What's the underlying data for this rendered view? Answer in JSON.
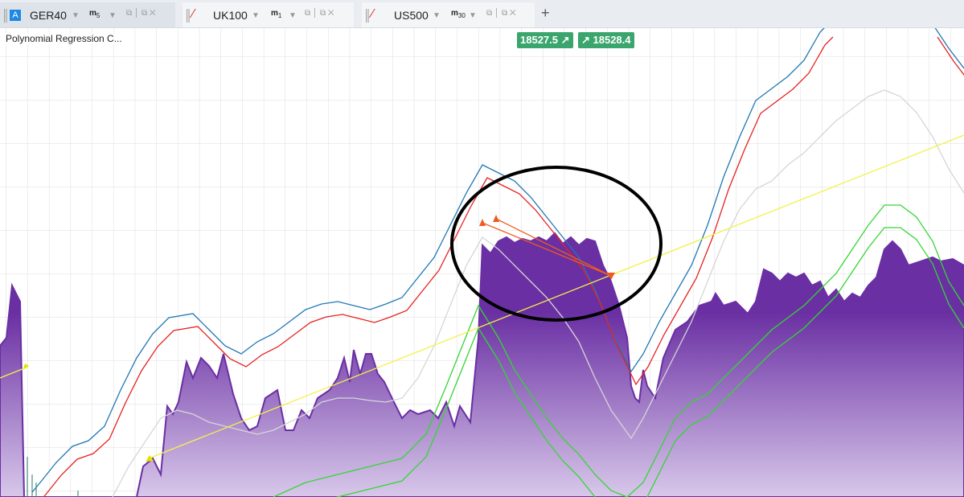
{
  "tabs": [
    {
      "symbol": "GER40",
      "timeframe": "m",
      "period": "5"
    },
    {
      "symbol": "UK100",
      "timeframe": "m",
      "period": "1"
    },
    {
      "symbol": "US500",
      "timeframe": "m",
      "period": "30"
    }
  ],
  "indicator": "Polynomial Regression C...",
  "prices": {
    "bid": "18527.5",
    "ask": "18528.4"
  }
}
